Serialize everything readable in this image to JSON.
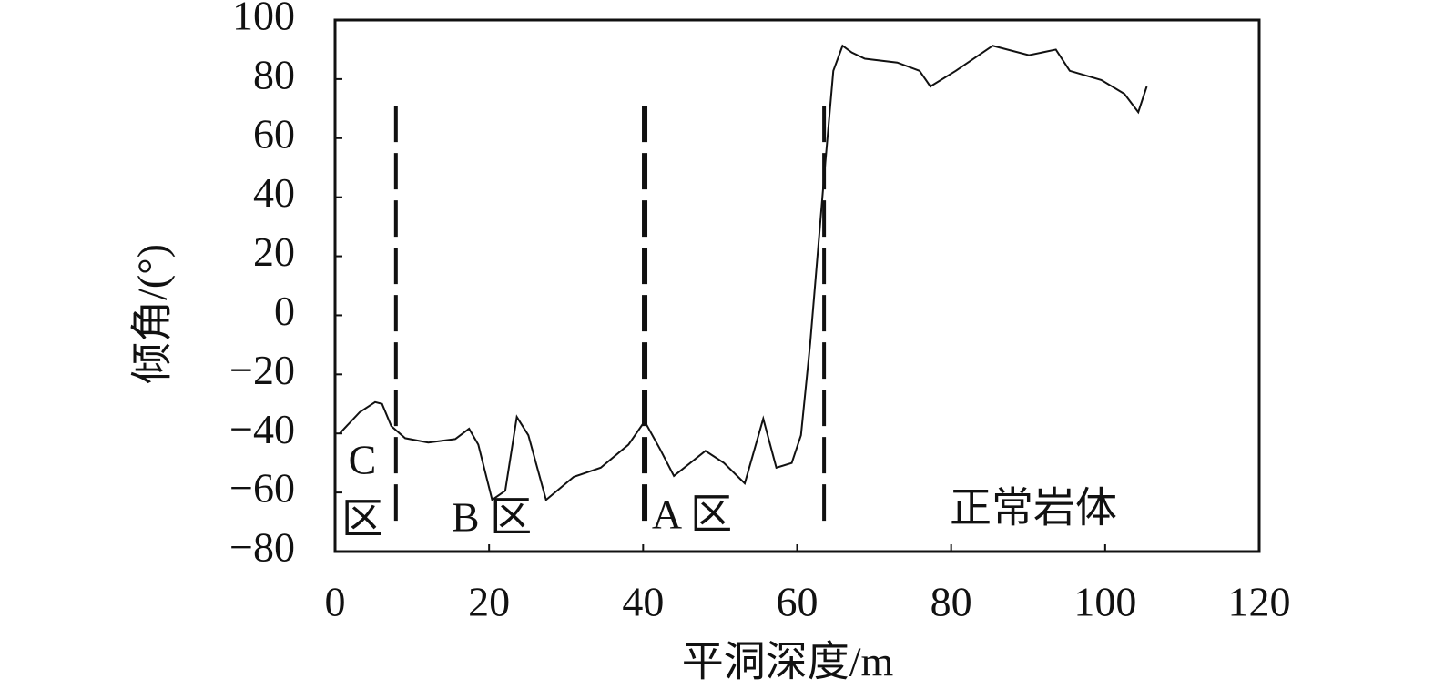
{
  "chart_data": {
    "type": "line",
    "x_label": "平洞深度/m",
    "y_label": "倾角/(°)",
    "x": [
      0.6,
      3.2,
      5.2,
      6.1,
      7.3,
      9.1,
      12.1,
      15.6,
      17.4,
      18.6,
      20.4,
      22.1,
      23.6,
      25.1,
      27.4,
      31.0,
      34.5,
      38.1,
      40.2,
      42.2,
      44.0,
      48.1,
      50.5,
      53.2,
      55.6,
      57.3,
      59.3,
      60.5,
      61.7,
      63.5,
      64.7,
      65.9,
      67.1,
      68.8,
      73.0,
      75.9,
      77.3,
      80.6,
      85.4,
      90.1,
      93.6,
      95.4,
      99.5,
      102.5,
      104.3,
      105.4
    ],
    "series": [
      {
        "color": "#111111",
        "values": [
          -40,
          -32.8,
          -29.4,
          -30,
          -37.5,
          -41.6,
          -43.1,
          -41.9,
          -38.4,
          -43.8,
          -62.5,
          -59.4,
          -34.4,
          -40.6,
          -62.5,
          -54.7,
          -51.6,
          -43.8,
          -35.9,
          -45.3,
          -54.4,
          -45.9,
          -50,
          -56.9,
          -35,
          -51.6,
          -50,
          -40.6,
          -9.4,
          46.9,
          82.8,
          91.3,
          89,
          86.9,
          85.6,
          82.8,
          77.5,
          82.8,
          91.3,
          88.1,
          90,
          82.8,
          79.7,
          75,
          68.8,
          77.5
        ]
      }
    ],
    "boundaries": [
      7.9,
      40.2,
      63.5
    ],
    "boundary_span": [
      -72,
      71
    ],
    "annotations": [
      "C",
      "区",
      "B 区",
      "A 区",
      "正常岩体"
    ],
    "xlim": [
      0,
      120
    ],
    "xticks": [
      0,
      20,
      40,
      60,
      80,
      100,
      120
    ],
    "ylim": [
      -80,
      100
    ],
    "yticks": [
      {
        "value": -80,
        "label": "−80"
      },
      {
        "value": -60,
        "label": "−60"
      },
      {
        "value": -40,
        "label": "−40"
      },
      {
        "value": -20,
        "label": "−20"
      },
      0,
      20,
      40,
      60,
      80,
      100
    ]
  }
}
